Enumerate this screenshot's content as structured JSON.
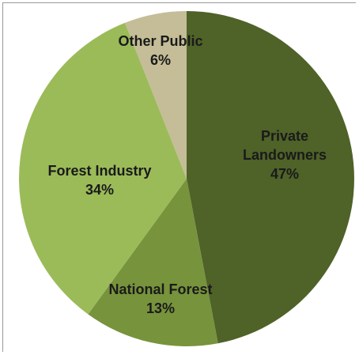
{
  "chart_data": {
    "type": "pie",
    "title": "",
    "slices": [
      {
        "label": "Private Landowners",
        "value": 47,
        "percent_label": "47%",
        "color": "#4f6228"
      },
      {
        "label": "National Forest",
        "value": 13,
        "percent_label": "13%",
        "color": "#77933c"
      },
      {
        "label": "Forest Industry",
        "value": 34,
        "percent_label": "34%",
        "color": "#9bbb59"
      },
      {
        "label": "Other Public",
        "value": 6,
        "percent_label": "6%",
        "color": "#c4bd97"
      }
    ],
    "start": "12 o'clock",
    "direction": "clockwise",
    "legend": "none",
    "data_labels": "inside slices"
  }
}
